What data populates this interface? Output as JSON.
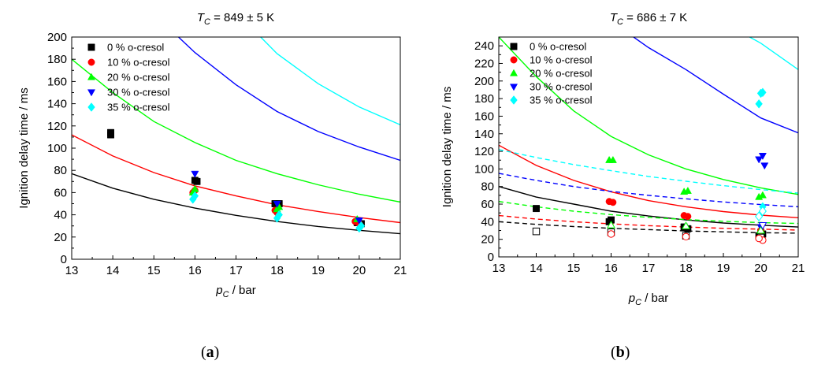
{
  "chart_data": [
    {
      "type": "scatter",
      "panel_label": "a",
      "title_symbol": "T",
      "title_sub": "C",
      "title_value": " = 849 ± 5 K",
      "xlabel_symbol": "p",
      "xlabel_sub": "C",
      "xlabel_rest": " / bar",
      "ylabel": "Ignition delay time / ms",
      "xlim": [
        13,
        21
      ],
      "ylim": [
        0,
        200
      ],
      "xticks": [
        13,
        14,
        15,
        16,
        17,
        18,
        19,
        20,
        21
      ],
      "yticks": [
        0,
        20,
        40,
        60,
        80,
        100,
        120,
        140,
        160,
        180,
        200
      ],
      "legend_position": "top-left",
      "series": [
        {
          "name": "0 % o-cresol",
          "marker": "square",
          "color": "#000000",
          "points": [
            [
              13.95,
              112
            ],
            [
              13.95,
              114
            ],
            [
              16.0,
              71
            ],
            [
              16.05,
              70
            ],
            [
              17.95,
              50
            ],
            [
              18.05,
              50
            ],
            [
              19.95,
              33
            ],
            [
              20.05,
              32
            ]
          ]
        },
        {
          "name": "10 % o-cresol",
          "marker": "circle",
          "color": "#ff0000",
          "points": [
            [
              16.0,
              62
            ],
            [
              15.95,
              60
            ],
            [
              17.95,
              44
            ],
            [
              18.0,
              42
            ],
            [
              19.9,
              34
            ],
            [
              20.0,
              32
            ]
          ]
        },
        {
          "name": "20 % o-cresol",
          "marker": "triangle-up",
          "color": "#00ff00",
          "points": [
            [
              16.0,
              63
            ],
            [
              15.95,
              60
            ],
            [
              18.0,
              45
            ],
            [
              18.05,
              47
            ],
            [
              19.95,
              36
            ]
          ]
        },
        {
          "name": "30 % o-cresol",
          "marker": "triangle-down",
          "color": "#0000ff",
          "points": [
            [
              16.0,
              77
            ],
            [
              18.0,
              50
            ],
            [
              20.0,
              35
            ]
          ]
        },
        {
          "name": "35 % o-cresol",
          "marker": "diamond",
          "color": "#00ffff",
          "points": [
            [
              16.0,
              57
            ],
            [
              15.95,
              54
            ],
            [
              18.05,
              40
            ],
            [
              18.0,
              37
            ],
            [
              20.05,
              30
            ],
            [
              20.0,
              28
            ]
          ]
        }
      ],
      "curves": [
        {
          "color": "#000000",
          "dashed": false,
          "points": [
            [
              13,
              77
            ],
            [
              14,
              64
            ],
            [
              15,
              54
            ],
            [
              16,
              46
            ],
            [
              17,
              39.5
            ],
            [
              18,
              34
            ],
            [
              19,
              29.5
            ],
            [
              20,
              26
            ],
            [
              21,
              23
            ]
          ]
        },
        {
          "color": "#ff0000",
          "dashed": false,
          "points": [
            [
              13,
              112
            ],
            [
              14,
              93
            ],
            [
              15,
              78
            ],
            [
              16,
              66
            ],
            [
              17,
              57
            ],
            [
              18,
              49
            ],
            [
              19,
              43
            ],
            [
              20,
              37.5
            ],
            [
              21,
              33
            ]
          ]
        },
        {
          "color": "#00ff00",
          "dashed": false,
          "points": [
            [
              13,
              180
            ],
            [
              14,
              150
            ],
            [
              15,
              124
            ],
            [
              16,
              105
            ],
            [
              17,
              89
            ],
            [
              18,
              77
            ],
            [
              19,
              67
            ],
            [
              20,
              58.5
            ],
            [
              21,
              51.5
            ]
          ]
        },
        {
          "color": "#0000ff",
          "dashed": false,
          "points": [
            [
              15.6,
              200
            ],
            [
              16,
              186
            ],
            [
              17,
              157
            ],
            [
              18,
              133
            ],
            [
              19,
              115
            ],
            [
              20,
              101
            ],
            [
              21,
              89
            ]
          ]
        },
        {
          "color": "#00ffff",
          "dashed": false,
          "points": [
            [
              17.6,
              200
            ],
            [
              18,
              185
            ],
            [
              19,
              158
            ],
            [
              20,
              137
            ],
            [
              21,
              121
            ]
          ]
        }
      ]
    },
    {
      "type": "scatter",
      "panel_label": "b",
      "title_symbol": "T",
      "title_sub": "C",
      "title_value": " = 686 ± 7 K",
      "xlabel_symbol": "p",
      "xlabel_sub": "C",
      "xlabel_rest": " / bar",
      "ylabel": "Ignition delay time / ms",
      "xlim": [
        13,
        21
      ],
      "ylim": [
        0,
        250
      ],
      "xticks": [
        13,
        14,
        15,
        16,
        17,
        18,
        19,
        20,
        21
      ],
      "yticks": [
        0,
        20,
        40,
        60,
        80,
        100,
        120,
        140,
        160,
        180,
        200,
        220,
        240
      ],
      "legend_position": "top-left",
      "series": [
        {
          "name": "0 % o-cresol",
          "marker": "square",
          "color": "#000000",
          "points": [
            [
              14.0,
              55
            ],
            [
              16.0,
              42
            ],
            [
              15.95,
              40
            ],
            [
              17.95,
              34
            ],
            [
              18.05,
              32
            ],
            [
              20.0,
              28
            ],
            [
              20.05,
              26
            ],
            [
              19.95,
              24
            ]
          ]
        },
        {
          "name": "10 % o-cresol",
          "marker": "circle",
          "color": "#ff0000",
          "points": [
            [
              15.95,
              63
            ],
            [
              16.05,
              62
            ],
            [
              17.95,
              47
            ],
            [
              18.05,
              46
            ],
            [
              20.0,
              30
            ]
          ]
        },
        {
          "name": "20 % o-cresol",
          "marker": "triangle-up",
          "color": "#00ff00",
          "points": [
            [
              15.95,
              110
            ],
            [
              16.05,
              110
            ],
            [
              17.95,
              74
            ],
            [
              18.05,
              75
            ],
            [
              19.95,
              68
            ],
            [
              20.05,
              70
            ]
          ]
        },
        {
          "name": "30 % o-cresol",
          "marker": "triangle-down",
          "color": "#0000ff",
          "points": [
            [
              19.95,
              111
            ],
            [
              20.05,
              115
            ],
            [
              20.1,
              104
            ],
            [
              20.0,
              34
            ]
          ]
        },
        {
          "name": "35 % o-cresol",
          "marker": "diamond",
          "color": "#00ffff",
          "points": [
            [
              20.0,
              186
            ],
            [
              20.05,
              187
            ],
            [
              19.95,
              174
            ],
            [
              20.05,
              57
            ]
          ]
        },
        {
          "name": "",
          "marker": "square-open",
          "color": "#000000",
          "points": [
            [
              14.0,
              29
            ],
            [
              16.0,
              28
            ],
            [
              18.0,
              24
            ],
            [
              20.0,
              22
            ]
          ]
        },
        {
          "name": "",
          "marker": "circle-open",
          "color": "#ff0000",
          "points": [
            [
              16.0,
              26
            ],
            [
              18.0,
              23
            ],
            [
              20.05,
              19
            ],
            [
              19.95,
              21
            ]
          ]
        },
        {
          "name": "",
          "marker": "triangle-up-open",
          "color": "#00ff00",
          "points": [
            [
              16.0,
              36
            ],
            [
              18.0,
              35
            ],
            [
              20.0,
              30
            ]
          ]
        },
        {
          "name": "",
          "marker": "triangle-down-open",
          "color": "#0000ff",
          "points": [
            [
              20.05,
              36
            ]
          ]
        },
        {
          "name": "",
          "marker": "diamond-open",
          "color": "#00ffff",
          "points": [
            [
              20.05,
              52
            ],
            [
              19.95,
              46
            ]
          ]
        }
      ],
      "curves": [
        {
          "color": "#000000",
          "dashed": false,
          "points": [
            [
              13,
              80
            ],
            [
              14,
              68
            ],
            [
              15,
              60
            ],
            [
              16,
              52
            ],
            [
              17,
              46.5
            ],
            [
              18,
              42
            ],
            [
              19,
              38.5
            ],
            [
              20,
              36
            ],
            [
              21,
              34
            ]
          ]
        },
        {
          "color": "#ff0000",
          "dashed": false,
          "points": [
            [
              13,
              127
            ],
            [
              14,
              104
            ],
            [
              15,
              87
            ],
            [
              16,
              74
            ],
            [
              17,
              64
            ],
            [
              18,
              57
            ],
            [
              19,
              51.5
            ],
            [
              20,
              47.5
            ],
            [
              21,
              44.5
            ]
          ]
        },
        {
          "color": "#00ff00",
          "dashed": false,
          "points": [
            [
              13,
              250
            ],
            [
              14,
              205
            ],
            [
              15,
              166
            ],
            [
              16,
              137
            ],
            [
              17,
              116
            ],
            [
              18,
              100
            ],
            [
              19,
              88
            ],
            [
              20,
              78.5
            ],
            [
              21,
              71
            ]
          ]
        },
        {
          "color": "#0000ff",
          "dashed": false,
          "points": [
            [
              16.6,
              250
            ],
            [
              17,
              238
            ],
            [
              18,
              213
            ],
            [
              19,
              185
            ],
            [
              20,
              158
            ],
            [
              21,
              141
            ]
          ]
        },
        {
          "color": "#00ffff",
          "dashed": false,
          "points": [
            [
              19.7,
              250
            ],
            [
              20,
              243
            ],
            [
              21,
              213
            ]
          ]
        },
        {
          "color": "#000000",
          "dashed": true,
          "points": [
            [
              13,
              40
            ],
            [
              14,
              37
            ],
            [
              15,
              34.5
            ],
            [
              16,
              32.5
            ],
            [
              17,
              31
            ],
            [
              18,
              29.5
            ],
            [
              19,
              28.5
            ],
            [
              20,
              27.5
            ],
            [
              21,
              27
            ]
          ]
        },
        {
          "color": "#ff0000",
          "dashed": true,
          "points": [
            [
              13,
              47
            ],
            [
              14,
              43
            ],
            [
              15,
              40
            ],
            [
              16,
              37.5
            ],
            [
              17,
              35.5
            ],
            [
              18,
              34
            ],
            [
              19,
              32.5
            ],
            [
              20,
              31.5
            ],
            [
              21,
              30.5
            ]
          ]
        },
        {
          "color": "#00ff00",
          "dashed": true,
          "points": [
            [
              13,
              63
            ],
            [
              14,
              57
            ],
            [
              15,
              52
            ],
            [
              16,
              48
            ],
            [
              17,
              45
            ],
            [
              18,
              42.5
            ],
            [
              19,
              40.5
            ],
            [
              20,
              39
            ],
            [
              21,
              38
            ]
          ]
        },
        {
          "color": "#0000ff",
          "dashed": true,
          "points": [
            [
              13,
              95
            ],
            [
              14,
              87
            ],
            [
              15,
              80
            ],
            [
              16,
              74.5
            ],
            [
              17,
              70
            ],
            [
              18,
              66
            ],
            [
              19,
              62.5
            ],
            [
              20,
              59.5
            ],
            [
              21,
              57
            ]
          ]
        },
        {
          "color": "#00ffff",
          "dashed": true,
          "points": [
            [
              13,
              122
            ],
            [
              14,
              113
            ],
            [
              15,
              105
            ],
            [
              16,
              98
            ],
            [
              17,
              91.5
            ],
            [
              18,
              86
            ],
            [
              19,
              81
            ],
            [
              20,
              76.5
            ],
            [
              21,
              72.5
            ]
          ]
        }
      ]
    }
  ]
}
